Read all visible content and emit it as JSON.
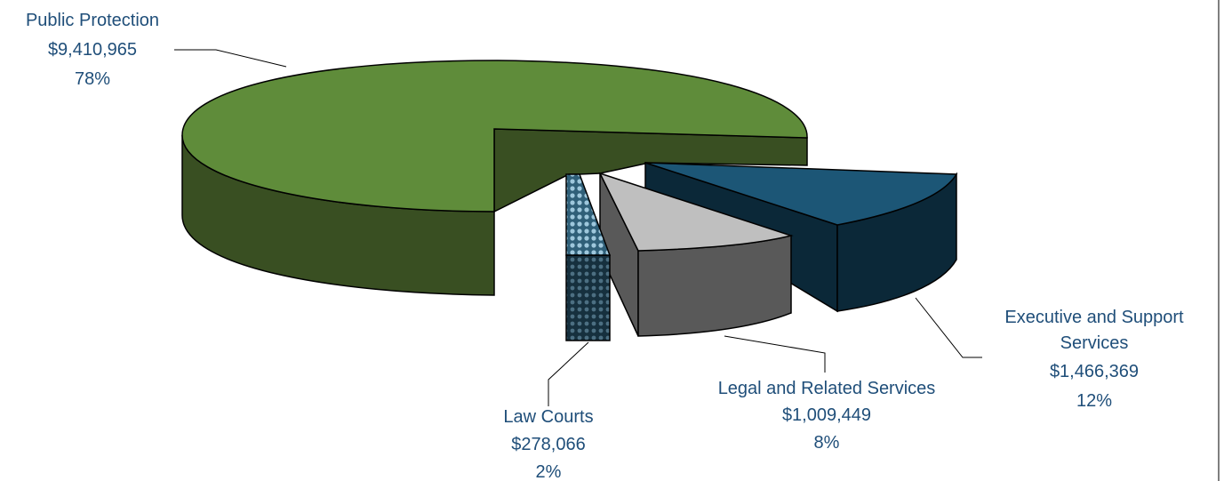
{
  "chart_data": {
    "type": "pie",
    "style": "3d-exploded",
    "slices": [
      {
        "name": "Public Protection",
        "value": 9410965,
        "value_label": "$9,410,965",
        "percent_label": "78%",
        "color": "#5f8c3a",
        "side_color": "#394f22"
      },
      {
        "name": "Executive and Support Services",
        "name_lines": [
          "Executive and Support",
          "Services"
        ],
        "value": 1466369,
        "value_label": "$1,466,369",
        "percent_label": "12%",
        "color": "#1c5676",
        "side_color": "#0b2838"
      },
      {
        "name": "Legal and Related Services",
        "value": 1009449,
        "value_label": "$1,009,449",
        "percent_label": "8%",
        "color": "#bfbfbf",
        "side_color": "#595959"
      },
      {
        "name": "Law Courts",
        "value": 278066,
        "value_label": "$278,066",
        "percent_label": "2%",
        "color": "#7fb0c8",
        "side_color": "#1e3a4a",
        "pattern": "dots"
      }
    ],
    "legend": "none",
    "label_color": "#1f4e79"
  }
}
